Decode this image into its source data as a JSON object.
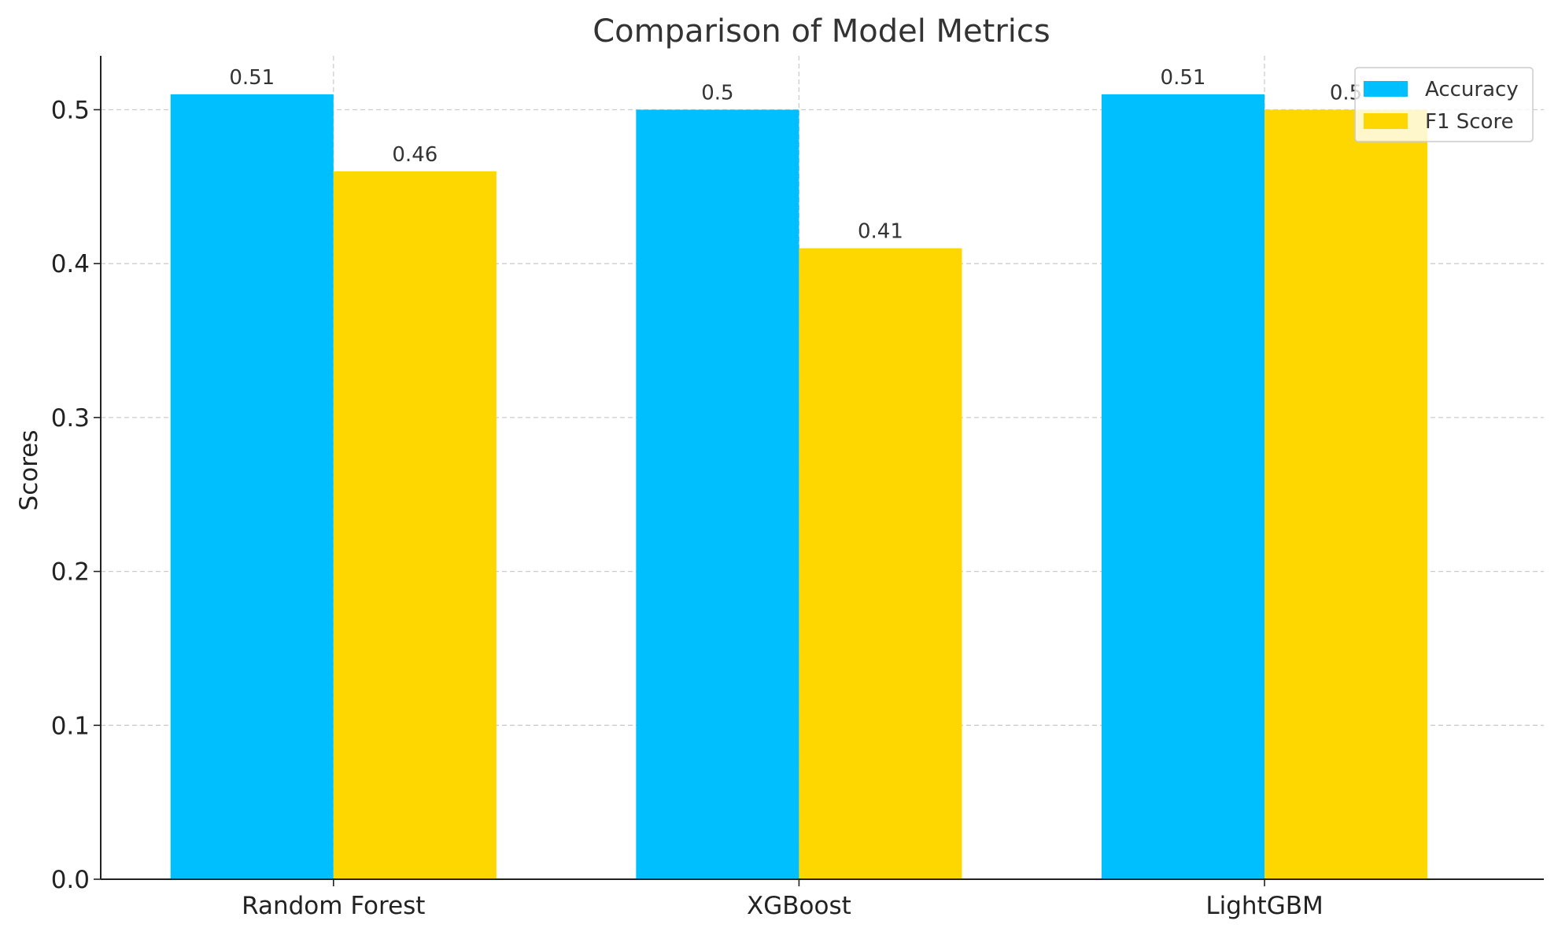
{
  "chart_data": {
    "type": "bar",
    "title": "Comparison of Model Metrics",
    "xlabel": "",
    "ylabel": "Scores",
    "categories": [
      "Random Forest",
      "XGBoost",
      "LightGBM"
    ],
    "series": [
      {
        "name": "Accuracy",
        "values": [
          0.51,
          0.5,
          0.51
        ],
        "color": "#00bfff"
      },
      {
        "name": "F1 Score",
        "values": [
          0.46,
          0.41,
          0.5
        ],
        "color": "#ffd700"
      }
    ],
    "data_labels": [
      [
        "0.51",
        "0.5",
        "0.51"
      ],
      [
        "0.46",
        "0.41",
        "0.5"
      ]
    ],
    "ylim": [
      0,
      0.535
    ],
    "yticks": [
      0.0,
      0.1,
      0.2,
      0.3,
      0.4,
      0.5
    ],
    "ytick_labels": [
      "0.0",
      "0.1",
      "0.2",
      "0.3",
      "0.4",
      "0.5"
    ],
    "grid": true,
    "grid_color": "#cccccc",
    "legend_position": "top-right"
  }
}
